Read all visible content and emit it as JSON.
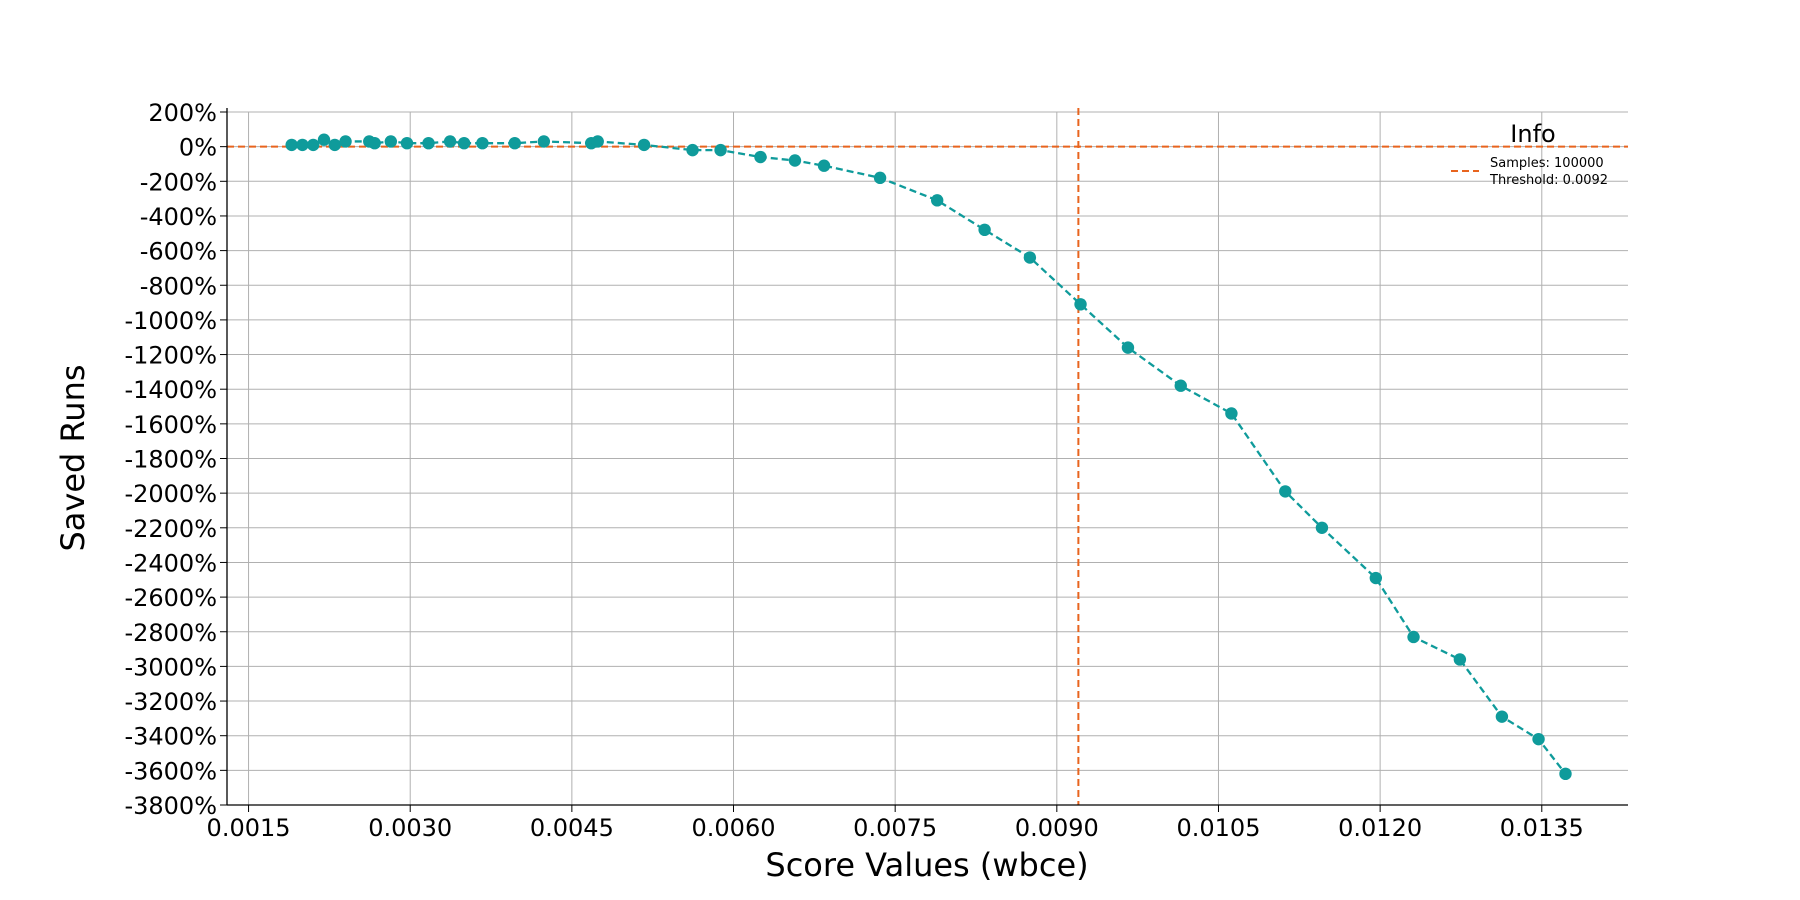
{
  "chart_data": {
    "type": "line",
    "xlabel": "Score Values (wbce)",
    "ylabel": "Saved Runs",
    "x_ticks": [
      0.0015,
      0.003,
      0.0045,
      0.006,
      0.0075,
      0.009,
      0.0105,
      0.012,
      0.0135
    ],
    "x_tick_labels": [
      "0.0015",
      "0.0030",
      "0.0045",
      "0.0060",
      "0.0075",
      "0.0090",
      "0.0105",
      "0.0120",
      "0.0135"
    ],
    "y_ticks": [
      200,
      0,
      -200,
      -400,
      -600,
      -800,
      -1000,
      -1200,
      -1400,
      -1600,
      -1800,
      -2000,
      -2200,
      -2400,
      -2600,
      -2800,
      -3000,
      -3200,
      -3400,
      -3600,
      -3800
    ],
    "y_tick_labels": [
      "200%",
      "0%",
      "-200%",
      "-400%",
      "-600%",
      "-800%",
      "-1000%",
      "-1200%",
      "-1400%",
      "-1600%",
      "-1800%",
      "-2000%",
      "-2200%",
      "-2400%",
      "-2600%",
      "-2800%",
      "-3000%",
      "-3200%",
      "-3400%",
      "-3600%",
      "-3800%"
    ],
    "xlim": [
      0.0013,
      0.0143
    ],
    "ylim": [
      -3800,
      200
    ],
    "grid": true,
    "series": [
      {
        "color": "#0f9b9b",
        "line_style": "dashed",
        "marker": "circle",
        "x": [
          0.0019,
          0.002,
          0.0021,
          0.0022,
          0.0023,
          0.0024,
          0.00262,
          0.00267,
          0.00282,
          0.00297,
          0.00317,
          0.00337,
          0.0035,
          0.00367,
          0.00397,
          0.00424,
          0.00468,
          0.00474,
          0.00517,
          0.00562,
          0.00588,
          0.00625,
          0.00657,
          0.00684,
          0.00736,
          0.00789,
          0.00833,
          0.00875,
          0.00922,
          0.00966,
          0.01015,
          0.01062,
          0.01112,
          0.01146,
          0.01196,
          0.01231,
          0.01274,
          0.01313,
          0.01347,
          0.01372
        ],
        "values": [
          10,
          10,
          10,
          40,
          10,
          30,
          30,
          20,
          30,
          20,
          20,
          30,
          20,
          20,
          20,
          30,
          20,
          30,
          10,
          -20,
          -20,
          -60,
          -80,
          -110,
          -180,
          -310,
          -480,
          -640,
          -910,
          -1160,
          -1380,
          -1540,
          -1990,
          -2200,
          -2490,
          -2830,
          -2960,
          -3290,
          -3420,
          -3620
        ]
      }
    ],
    "reference_lines": [
      {
        "orientation": "horizontal",
        "value": 0,
        "color": "#e8641e",
        "line_style": "dashed"
      },
      {
        "orientation": "vertical",
        "value": 0.0092,
        "color": "#e8641e",
        "line_style": "dashed"
      }
    ],
    "legend": {
      "title": "Info",
      "placement": "top-right",
      "entries": [
        "Samples: 100000",
        "Threshold: 0.0092"
      ]
    }
  }
}
